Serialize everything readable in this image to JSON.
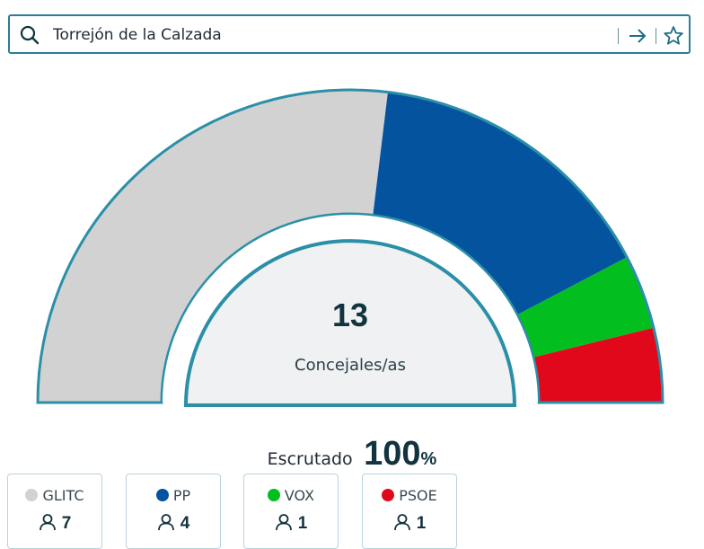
{
  "search": {
    "value": "Torrejón de la Calzada",
    "icon": "search-icon",
    "go_icon": "arrow-right-icon",
    "favorite_icon": "star-icon"
  },
  "hemicycle": {
    "total_seats": "13",
    "seats_label": "Concejales/as",
    "ring_color": "#2b8fa8",
    "center_fill": "#eff1f2"
  },
  "scrutiny": {
    "label": "Escrutado",
    "value": "100",
    "unit": "%"
  },
  "parties": [
    {
      "name": "GLITC",
      "seats": "7",
      "color": "#d2d2d2"
    },
    {
      "name": "PP",
      "seats": "4",
      "color": "#03539e"
    },
    {
      "name": "VOX",
      "seats": "1",
      "color": "#03be1f"
    },
    {
      "name": "PSOE",
      "seats": "1",
      "color": "#e2081b"
    }
  ]
}
